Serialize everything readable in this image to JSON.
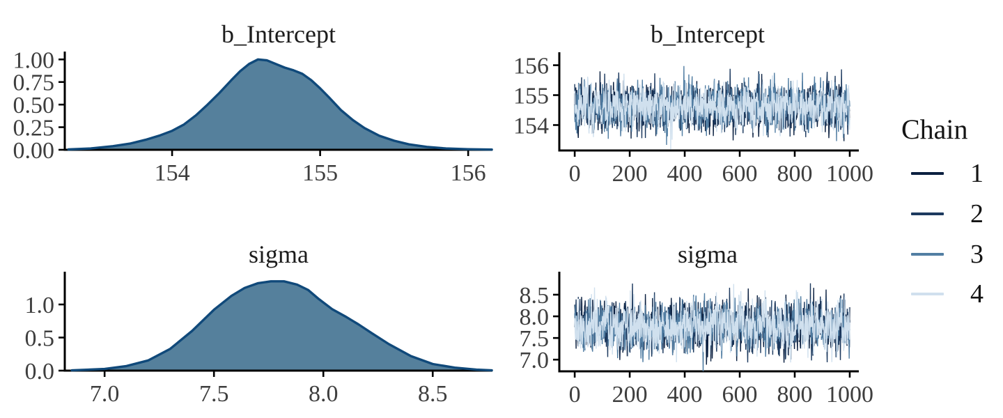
{
  "figure": {
    "background": "#ffffff"
  },
  "legend": {
    "title": "Chain",
    "entries": [
      {
        "label": "1",
        "color": "#0b2040"
      },
      {
        "label": "2",
        "color": "#1d3a5f"
      },
      {
        "label": "3",
        "color": "#527ea3"
      },
      {
        "label": "4",
        "color": "#d0e0ee"
      }
    ]
  },
  "chart_data": [
    {
      "id": "density_b_Intercept",
      "type": "area",
      "title": "b_Intercept",
      "xlabel": "",
      "ylabel": "",
      "xlim": [
        153.275,
        156.164
      ],
      "ylim": [
        0,
        1.01
      ],
      "x_tick_labels": [
        "154",
        "155",
        "156"
      ],
      "x_tick_values": [
        154,
        155,
        156
      ],
      "y_tick_labels": [
        "1.00",
        "0.75",
        "0.50",
        "0.25",
        "0.00"
      ],
      "y_tick_values": [
        1.0,
        0.75,
        0.5,
        0.25,
        0.0
      ],
      "fill_color": "#55809c",
      "line_color": "#10497a",
      "x": [
        153.3,
        153.45,
        153.6,
        153.72,
        153.82,
        153.92,
        154.0,
        154.08,
        154.16,
        154.24,
        154.32,
        154.4,
        154.46,
        154.52,
        154.58,
        154.64,
        154.7,
        154.76,
        154.82,
        154.88,
        154.94,
        155.0,
        155.06,
        155.14,
        155.22,
        155.3,
        155.4,
        155.5,
        155.6,
        155.72,
        155.85,
        156.0,
        156.16
      ],
      "y": [
        0.004,
        0.015,
        0.04,
        0.07,
        0.11,
        0.16,
        0.21,
        0.28,
        0.38,
        0.5,
        0.63,
        0.77,
        0.87,
        0.95,
        1.0,
        0.99,
        0.95,
        0.91,
        0.88,
        0.84,
        0.77,
        0.68,
        0.58,
        0.44,
        0.33,
        0.24,
        0.155,
        0.1,
        0.06,
        0.032,
        0.015,
        0.006,
        0.002
      ]
    },
    {
      "id": "trace_b_Intercept",
      "type": "line",
      "title": "b_Intercept",
      "xlabel": "",
      "ylabel": "",
      "xlim": [
        -56,
        1033
      ],
      "ylim": [
        153.15,
        156.2
      ],
      "x_tick_labels": [
        "0",
        "200",
        "400",
        "600",
        "800",
        "1000"
      ],
      "x_tick_values": [
        0,
        200,
        400,
        600,
        800,
        1000
      ],
      "y_tick_labels": [
        "156",
        "155",
        "154"
      ],
      "y_tick_values": [
        156,
        155,
        154
      ],
      "n_iterations": 1000,
      "series": [
        {
          "name": "1",
          "center": 154.62,
          "sd": 0.38,
          "phi": 0.25,
          "seed": 101
        },
        {
          "name": "2",
          "center": 154.62,
          "sd": 0.38,
          "phi": 0.25,
          "seed": 202
        },
        {
          "name": "3",
          "center": 154.62,
          "sd": 0.38,
          "phi": 0.25,
          "seed": 303
        },
        {
          "name": "4",
          "center": 154.62,
          "sd": 0.38,
          "phi": 0.25,
          "seed": 404
        }
      ]
    },
    {
      "id": "density_sigma",
      "type": "area",
      "title": "sigma",
      "xlabel": "",
      "ylabel": "",
      "xlim": [
        6.818,
        8.773
      ],
      "ylim": [
        0,
        1.39
      ],
      "x_tick_labels": [
        "7.0",
        "7.5",
        "8.0",
        "8.5"
      ],
      "x_tick_values": [
        7.0,
        7.5,
        8.0,
        8.5
      ],
      "y_tick_labels": [
        "1.0",
        "0.5",
        "0.0"
      ],
      "y_tick_values": [
        1.0,
        0.5,
        0.0
      ],
      "fill_color": "#55809c",
      "line_color": "#10497a",
      "x": [
        6.85,
        7.0,
        7.1,
        7.2,
        7.3,
        7.4,
        7.5,
        7.58,
        7.64,
        7.7,
        7.76,
        7.82,
        7.88,
        7.93,
        7.98,
        8.04,
        8.1,
        8.16,
        8.22,
        8.3,
        8.4,
        8.5,
        8.6,
        8.7,
        8.77
      ],
      "y": [
        0.004,
        0.025,
        0.07,
        0.155,
        0.33,
        0.6,
        0.92,
        1.13,
        1.25,
        1.32,
        1.35,
        1.35,
        1.3,
        1.22,
        1.08,
        0.93,
        0.82,
        0.7,
        0.57,
        0.4,
        0.22,
        0.1,
        0.045,
        0.015,
        0.004
      ]
    },
    {
      "id": "trace_sigma",
      "type": "line",
      "title": "sigma",
      "xlabel": "",
      "ylabel": "",
      "xlim": [
        -56,
        1033
      ],
      "ylim": [
        6.73,
        8.87
      ],
      "x_tick_labels": [
        "0",
        "200",
        "400",
        "600",
        "800",
        "1000"
      ],
      "x_tick_values": [
        0,
        200,
        400,
        600,
        800,
        1000
      ],
      "y_tick_labels": [
        "8.5",
        "8.0",
        "7.5",
        "7.0"
      ],
      "y_tick_values": [
        8.5,
        8.0,
        7.5,
        7.0
      ],
      "n_iterations": 1000,
      "series": [
        {
          "name": "1",
          "center": 7.78,
          "sd": 0.28,
          "phi": 0.25,
          "seed": 505
        },
        {
          "name": "2",
          "center": 7.78,
          "sd": 0.28,
          "phi": 0.25,
          "seed": 606
        },
        {
          "name": "3",
          "center": 7.78,
          "sd": 0.28,
          "phi": 0.25,
          "seed": 707
        },
        {
          "name": "4",
          "center": 7.78,
          "sd": 0.28,
          "phi": 0.25,
          "seed": 808
        }
      ]
    }
  ]
}
